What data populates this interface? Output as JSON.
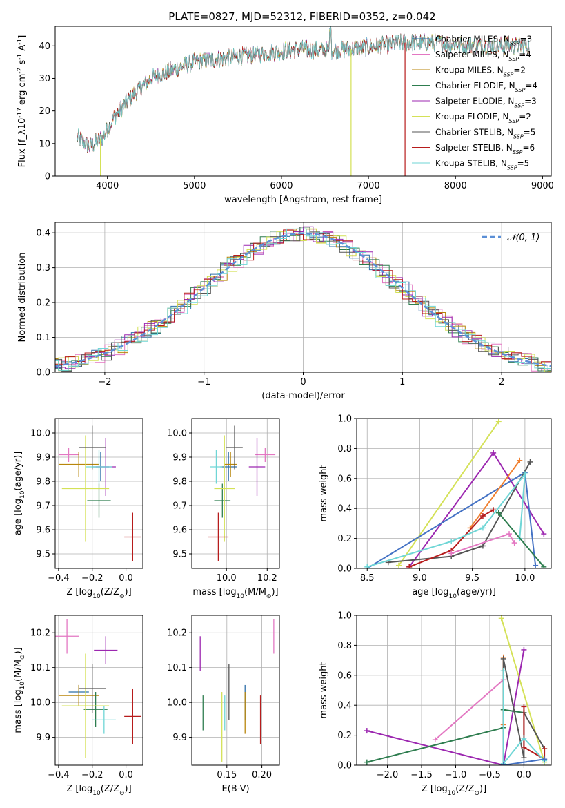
{
  "figure": {
    "title": "PLATE=0827, MJD=52312, FIBERID=0352, z=0.042",
    "colors": {
      "chabrier_miles": "#2f6fa8",
      "salpeter_miles": "#e377c2",
      "kroupa_miles": "#b8860b",
      "chabrier_elodie": "#2e7d4f",
      "salpeter_elodie": "#9c27b0",
      "kroupa_elodie": "#d4e157",
      "chabrier_stelib": "#555555",
      "salpeter_stelib": "#b71c1c",
      "kroupa_stelib": "#6fd6d6",
      "legend_gauss": "#5b8fd6",
      "orange_track": "#f08030",
      "blue_track": "#4472c4"
    }
  },
  "chart_data": [
    {
      "id": "spectrum",
      "type": "line",
      "xlabel": "wavelength [Angstrom, rest frame]",
      "ylabel": "Flux [f_λ10^-17 erg cm^-2 s^-1 A^-1]",
      "xlim": [
        3400,
        9100
      ],
      "ylim": [
        0,
        46
      ],
      "xticks": [
        4000,
        5000,
        6000,
        7000,
        8000,
        9000
      ],
      "yticks": [
        0,
        10,
        20,
        30,
        40
      ],
      "legend_position": "upper-right",
      "continuum": {
        "x": [
          3650,
          3800,
          3950,
          4100,
          4300,
          4500,
          4700,
          5000,
          5300,
          5600,
          5900,
          6200,
          6500,
          6800,
          7100,
          7400,
          7700,
          8000,
          8300,
          8600,
          8850
        ],
        "y": [
          12,
          9,
          12,
          19,
          25,
          30,
          32,
          35,
          36,
          37,
          38,
          39,
          38.5,
          39,
          40,
          41,
          41,
          40.5,
          40,
          40,
          40
        ]
      },
      "series": [
        {
          "name": "Chabrier MILES, N_SSP=3",
          "color": "chabrier_miles"
        },
        {
          "name": "Salpeter MILES, N_SSP=4",
          "color": "salpeter_miles"
        },
        {
          "name": "Kroupa MILES, N_SSP=2",
          "color": "kroupa_miles"
        },
        {
          "name": "Chabrier ELODIE, N_SSP=4",
          "color": "chabrier_elodie"
        },
        {
          "name": "Salpeter ELODIE, N_SSP=3",
          "color": "salpeter_elodie"
        },
        {
          "name": "Kroupa ELODIE, N_SSP=2",
          "color": "kroupa_elodie"
        },
        {
          "name": "Chabrier STELIB, N_SSP=5",
          "color": "chabrier_stelib"
        },
        {
          "name": "Salpeter STELIB, N_SSP=6",
          "color": "salpeter_stelib"
        },
        {
          "name": "Kroupa STELIB, N_SSP=5",
          "color": "kroupa_stelib"
        }
      ],
      "cutoffs": [
        {
          "color": "kroupa_elodie",
          "x": 3920
        },
        {
          "color": "kroupa_elodie",
          "x": 6800
        },
        {
          "color": "salpeter_stelib",
          "x": 7420
        }
      ]
    },
    {
      "id": "residuals",
      "type": "line",
      "xlabel": "(data-model)/error",
      "ylabel": "Normed distribution",
      "xlim": [
        -2.5,
        2.5
      ],
      "ylim": [
        0,
        0.43
      ],
      "xticks": [
        -2,
        -1,
        0,
        1,
        2
      ],
      "yticks": [
        0.0,
        0.1,
        0.2,
        0.3,
        0.4
      ],
      "grid": true,
      "legend_position": "upper-right",
      "gaussian": {
        "label": "N(0,1)",
        "mean": 0,
        "sigma": 1
      },
      "series_colors": [
        "chabrier_miles",
        "salpeter_miles",
        "kroupa_miles",
        "chabrier_elodie",
        "salpeter_elodie",
        "kroupa_elodie",
        "chabrier_stelib",
        "salpeter_stelib",
        "kroupa_stelib"
      ],
      "bin_width": 0.1
    },
    {
      "id": "age_vs_z",
      "type": "scatter",
      "xlabel": "Z [log10(Z/Z⊙)]",
      "ylabel": "age [log10(age/yr)]",
      "xlim": [
        -0.42,
        0.1
      ],
      "ylim": [
        9.44,
        10.06
      ],
      "xticks": [
        -0.4,
        -0.2,
        0.0
      ],
      "yticks": [
        9.5,
        9.6,
        9.7,
        9.8,
        9.9,
        10.0
      ],
      "grid": true,
      "points": [
        {
          "color": "chabrier_miles",
          "x": -0.15,
          "y": 9.86,
          "xerr": 0.05,
          "yerr": 0.06
        },
        {
          "color": "salpeter_miles",
          "x": -0.34,
          "y": 9.91,
          "xerr": 0.06,
          "yerr": 0.03
        },
        {
          "color": "kroupa_miles",
          "x": -0.28,
          "y": 9.87,
          "xerr": 0.12,
          "yerr": 0.05
        },
        {
          "color": "chabrier_elodie",
          "x": -0.16,
          "y": 9.72,
          "xerr": 0.07,
          "yerr": 0.07
        },
        {
          "color": "salpeter_elodie",
          "x": -0.12,
          "y": 9.86,
          "xerr": 0.06,
          "yerr": 0.12
        },
        {
          "color": "kroupa_elodie",
          "x": -0.24,
          "y": 9.77,
          "xerr": 0.14,
          "yerr": 0.22
        },
        {
          "color": "chabrier_stelib",
          "x": -0.2,
          "y": 9.94,
          "xerr": 0.08,
          "yerr": 0.09
        },
        {
          "color": "salpeter_stelib",
          "x": 0.04,
          "y": 9.57,
          "xerr": 0.05,
          "yerr": 0.1
        },
        {
          "color": "kroupa_stelib",
          "x": -0.16,
          "y": 9.86,
          "xerr": 0.08,
          "yerr": 0.07
        }
      ]
    },
    {
      "id": "age_vs_mass",
      "type": "scatter",
      "xlabel": "mass [log10(M/M⊙)]",
      "ylabel": "",
      "xlim": [
        9.83,
        10.26
      ],
      "ylim": [
        9.44,
        10.06
      ],
      "xticks": [
        10.0,
        10.2
      ],
      "yticks": [
        9.5,
        9.6,
        9.7,
        9.8,
        9.9,
        10.0
      ],
      "grid": true,
      "points": [
        {
          "color": "chabrier_miles",
          "x": 10.01,
          "y": 9.86,
          "xerr": 0.04,
          "yerr": 0.06
        },
        {
          "color": "salpeter_miles",
          "x": 10.19,
          "y": 9.91,
          "xerr": 0.05,
          "yerr": 0.03
        },
        {
          "color": "kroupa_miles",
          "x": 10.02,
          "y": 9.87,
          "xerr": 0.03,
          "yerr": 0.05
        },
        {
          "color": "chabrier_elodie",
          "x": 9.98,
          "y": 9.72,
          "xerr": 0.04,
          "yerr": 0.07
        },
        {
          "color": "salpeter_elodie",
          "x": 10.15,
          "y": 9.86,
          "xerr": 0.04,
          "yerr": 0.12
        },
        {
          "color": "kroupa_elodie",
          "x": 9.99,
          "y": 9.77,
          "xerr": 0.05,
          "yerr": 0.22
        },
        {
          "color": "chabrier_stelib",
          "x": 10.04,
          "y": 9.94,
          "xerr": 0.04,
          "yerr": 0.09
        },
        {
          "color": "salpeter_stelib",
          "x": 9.96,
          "y": 9.57,
          "xerr": 0.05,
          "yerr": 0.1
        },
        {
          "color": "kroupa_stelib",
          "x": 9.95,
          "y": 9.86,
          "xerr": 0.03,
          "yerr": 0.07
        }
      ]
    },
    {
      "id": "weight_vs_age",
      "type": "line",
      "xlabel": "age [log10(age/yr)]",
      "ylabel": "mass weight",
      "xlim": [
        8.4,
        10.25
      ],
      "ylim": [
        0,
        1.0
      ],
      "xticks": [
        8.5,
        9.0,
        9.5,
        10.0
      ],
      "yticks": [
        0.0,
        0.2,
        0.4,
        0.6,
        0.8,
        1.0
      ],
      "grid": true,
      "series": [
        {
          "color": "kroupa_elodie",
          "x": [
            8.8,
            9.75
          ],
          "y": [
            0.02,
            0.98
          ]
        },
        {
          "color": "salpeter_elodie",
          "x": [
            8.9,
            9.7,
            10.18
          ],
          "y": [
            0.01,
            0.77,
            0.23
          ]
        },
        {
          "color": "blue_track",
          "x": [
            8.5,
            10.0,
            10.1
          ],
          "y": [
            0.0,
            0.64,
            0.02
          ]
        },
        {
          "color": "orange_track",
          "x": [
            9.48,
            9.95
          ],
          "y": [
            0.27,
            0.72
          ]
        },
        {
          "color": "chabrier_stelib",
          "x": [
            8.7,
            9.3,
            9.6,
            10.05
          ],
          "y": [
            0.04,
            0.08,
            0.15,
            0.71
          ]
        },
        {
          "color": "salpeter_stelib",
          "x": [
            8.9,
            9.3,
            9.6,
            9.7
          ],
          "y": [
            0.01,
            0.12,
            0.35,
            0.39
          ]
        },
        {
          "color": "kroupa_stelib",
          "x": [
            8.5,
            9.3,
            9.6,
            10.0,
            9.95
          ],
          "y": [
            0.01,
            0.18,
            0.27,
            0.63,
            0.2
          ]
        },
        {
          "color": "salpeter_miles",
          "x": [
            9.3,
            9.85,
            9.9
          ],
          "y": [
            0.1,
            0.23,
            0.17
          ]
        },
        {
          "color": "chabrier_elodie",
          "x": [
            9.75,
            10.18
          ],
          "y": [
            0.37,
            0.01
          ]
        }
      ]
    },
    {
      "id": "mass_vs_z",
      "type": "scatter",
      "xlabel": "Z [log10(Z/Z⊙)]",
      "ylabel": "mass [log10(M/M⊙)]",
      "xlim": [
        -0.42,
        0.1
      ],
      "ylim": [
        9.82,
        10.25
      ],
      "xticks": [
        -0.4,
        -0.2,
        0.0
      ],
      "yticks": [
        9.9,
        10.0,
        10.1,
        10.2
      ],
      "grid": true,
      "points": [
        {
          "color": "chabrier_miles",
          "x": -0.28,
          "y": 10.03,
          "xerr": 0.06,
          "yerr": 0.02
        },
        {
          "color": "salpeter_miles",
          "x": -0.35,
          "y": 10.19,
          "xerr": 0.07,
          "yerr": 0.05
        },
        {
          "color": "kroupa_miles",
          "x": -0.28,
          "y": 10.02,
          "xerr": 0.12,
          "yerr": 0.03
        },
        {
          "color": "chabrier_elodie",
          "x": -0.18,
          "y": 9.98,
          "xerr": 0.07,
          "yerr": 0.05
        },
        {
          "color": "salpeter_elodie",
          "x": -0.12,
          "y": 10.15,
          "xerr": 0.07,
          "yerr": 0.04
        },
        {
          "color": "kroupa_elodie",
          "x": -0.24,
          "y": 9.99,
          "xerr": 0.14,
          "yerr": 0.15
        },
        {
          "color": "chabrier_stelib",
          "x": -0.2,
          "y": 10.04,
          "xerr": 0.08,
          "yerr": 0.07
        },
        {
          "color": "salpeter_stelib",
          "x": 0.04,
          "y": 9.96,
          "xerr": 0.05,
          "yerr": 0.08
        },
        {
          "color": "kroupa_stelib",
          "x": -0.13,
          "y": 9.95,
          "xerr": 0.07,
          "yerr": 0.04
        }
      ]
    },
    {
      "id": "mass_vs_ebv",
      "type": "scatter",
      "xlabel": "E(B-V)",
      "ylabel": "",
      "xlim": [
        0.1,
        0.225
      ],
      "ylim": [
        9.82,
        10.25
      ],
      "xticks": [
        0.15,
        0.2
      ],
      "yticks": [
        9.9,
        10.0,
        10.1,
        10.2
      ],
      "grid": true,
      "points": [
        {
          "color": "chabrier_miles",
          "x": 0.176,
          "y": 10.0,
          "xerr": 0,
          "yerr": 0.05
        },
        {
          "color": "salpeter_miles",
          "x": 0.217,
          "y": 10.19,
          "xerr": 0,
          "yerr": 0.05
        },
        {
          "color": "kroupa_miles",
          "x": 0.176,
          "y": 9.97,
          "xerr": 0,
          "yerr": 0.06
        },
        {
          "color": "chabrier_elodie",
          "x": 0.116,
          "y": 9.97,
          "xerr": 0,
          "yerr": 0.05
        },
        {
          "color": "salpeter_elodie",
          "x": 0.112,
          "y": 10.14,
          "xerr": 0,
          "yerr": 0.05
        },
        {
          "color": "kroupa_elodie",
          "x": 0.143,
          "y": 9.93,
          "xerr": 0,
          "yerr": 0.1
        },
        {
          "color": "chabrier_stelib",
          "x": 0.153,
          "y": 10.03,
          "xerr": 0,
          "yerr": 0.08
        },
        {
          "color": "salpeter_stelib",
          "x": 0.198,
          "y": 9.95,
          "xerr": 0,
          "yerr": 0.07
        },
        {
          "color": "kroupa_stelib",
          "x": 0.147,
          "y": 9.97,
          "xerr": 0,
          "yerr": 0.05
        }
      ]
    },
    {
      "id": "weight_vs_z",
      "type": "line",
      "xlabel": "Z [log10(Z/Z⊙)]",
      "ylabel": "mass weight",
      "xlim": [
        -2.45,
        0.4
      ],
      "ylim": [
        0,
        1.0
      ],
      "xticks": [
        -2.0,
        -1.5,
        -1.0,
        -0.5,
        0.0
      ],
      "yticks": [
        0.0,
        0.2,
        0.4,
        0.6,
        0.8,
        1.0
      ],
      "grid": true,
      "series": [
        {
          "color": "kroupa_elodie",
          "x": [
            -0.33,
            0.3
          ],
          "y": [
            0.98,
            0.02
          ]
        },
        {
          "color": "salpeter_elodie",
          "x": [
            -2.3,
            -0.3,
            0.0
          ],
          "y": [
            0.23,
            0.0,
            0.77
          ]
        },
        {
          "color": "chabrier_elodie",
          "x": [
            -2.3,
            -0.3,
            -0.3,
            0.0
          ],
          "y": [
            0.02,
            0.25,
            0.37,
            0.35
          ]
        },
        {
          "color": "salpeter_miles",
          "x": [
            -1.3,
            -0.3
          ],
          "y": [
            0.17,
            0.57
          ]
        },
        {
          "color": "orange_track",
          "x": [
            -0.3,
            -0.3
          ],
          "y": [
            0.27,
            0.72
          ]
        },
        {
          "color": "chabrier_stelib",
          "x": [
            -0.3,
            -0.3,
            0.0,
            0.0,
            0.3
          ],
          "y": [
            0.0,
            0.71,
            0.05,
            0.35,
            0.11
          ]
        },
        {
          "color": "salpeter_stelib",
          "x": [
            0.0,
            0.0,
            0.3,
            0.3
          ],
          "y": [
            0.39,
            0.12,
            0.04,
            0.11
          ]
        },
        {
          "color": "kroupa_stelib",
          "x": [
            -0.3,
            -0.3,
            0.0,
            0.3
          ],
          "y": [
            0.63,
            0.01,
            0.18,
            0.03
          ]
        },
        {
          "color": "blue_track",
          "x": [
            -0.3,
            0.0,
            0.3
          ],
          "y": [
            0.0,
            0.02,
            0.04
          ]
        }
      ]
    }
  ]
}
